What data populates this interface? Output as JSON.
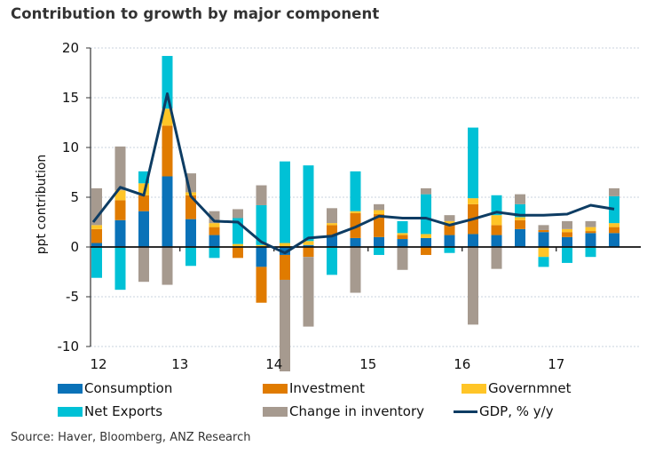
{
  "chart_data": {
    "type": "bar",
    "stacked": true,
    "title": "Contribution to growth by major component",
    "xlabel": "",
    "ylabel": "ppt contribution",
    "ylim": [
      -10,
      20
    ],
    "yticks": [
      -10,
      -5,
      0,
      5,
      10,
      15,
      20
    ],
    "xtick_labels": [
      "12",
      "13",
      "14",
      "15",
      "16",
      "17"
    ],
    "xtick_positions": [
      0,
      4,
      8,
      12,
      16,
      20
    ],
    "grid": true,
    "legend_position": "bottom",
    "categories": [
      "Q1 12",
      "Q2 12",
      "Q3 12",
      "Q4 12",
      "Q1 13",
      "Q2 13",
      "Q3 13",
      "Q4 13",
      "Q1 14",
      "Q2 14",
      "Q3 14",
      "Q4 14",
      "Q1 15",
      "Q2 15",
      "Q3 15",
      "Q4 15",
      "Q1 16",
      "Q2 16",
      "Q3 16",
      "Q4 16",
      "Q1 17",
      "Q2 17",
      "Q3 17"
    ],
    "series": [
      {
        "name": "Consumption",
        "color": "#0a72b8",
        "values": [
          0.4,
          2.7,
          3.6,
          7.1,
          2.8,
          1.2,
          0.0,
          -2.0,
          -0.8,
          0.2,
          1.2,
          0.9,
          1.0,
          0.8,
          0.9,
          1.2,
          1.3,
          1.2,
          1.8,
          1.5,
          1.0,
          1.4,
          1.4
        ]
      },
      {
        "name": "Investment",
        "color": "#e07b00",
        "values": [
          1.4,
          2.0,
          1.6,
          5.1,
          2.4,
          0.8,
          -1.1,
          -3.6,
          -2.5,
          -1.0,
          1.0,
          2.5,
          2.3,
          0.4,
          -0.8,
          1.0,
          3.0,
          1.0,
          0.9,
          0.2,
          0.5,
          0.2,
          0.6
        ]
      },
      {
        "name": "Governmnet",
        "color": "#ffc527",
        "values": [
          0.4,
          1.0,
          1.2,
          1.7,
          0.3,
          0.4,
          0.3,
          0.2,
          0.4,
          0.4,
          0.2,
          0.2,
          0.4,
          0.2,
          0.4,
          0.4,
          0.6,
          1.0,
          0.3,
          -1.0,
          0.3,
          0.4,
          0.4
        ]
      },
      {
        "name": "Net Exports",
        "color": "#00c1d6",
        "values": [
          -3.1,
          -4.3,
          1.2,
          5.3,
          -1.9,
          -1.1,
          2.6,
          4.0,
          8.2,
          7.6,
          -2.8,
          4.0,
          -0.8,
          1.2,
          4.0,
          -0.6,
          7.1,
          2.0,
          1.3,
          -1.0,
          -1.6,
          -1.0,
          2.7
        ]
      },
      {
        "name": "Change in inventory",
        "color": "#a69a8f",
        "values": [
          3.7,
          4.4,
          -3.5,
          -3.8,
          1.9,
          1.2,
          0.9,
          2.0,
          -9.2,
          -7.0,
          1.5,
          -4.6,
          0.6,
          -2.3,
          0.6,
          0.6,
          -7.8,
          -2.2,
          1.0,
          0.5,
          0.8,
          0.6,
          0.8
        ]
      },
      {
        "name": "GDP, % y/y",
        "type": "line",
        "color": "#0d3c63",
        "values": [
          2.5,
          6.0,
          5.2,
          15.4,
          5.1,
          2.6,
          2.5,
          0.5,
          -0.6,
          0.9,
          1.1,
          2.0,
          3.1,
          2.9,
          2.9,
          2.2,
          2.8,
          3.5,
          3.2,
          3.2,
          3.3,
          4.2,
          3.8
        ]
      }
    ]
  },
  "legend": {
    "items": [
      {
        "label": "Consumption",
        "color": "#0a72b8"
      },
      {
        "label": "Investment",
        "color": "#e07b00"
      },
      {
        "label": "Governmnet",
        "color": "#ffc527"
      },
      {
        "label": "Net Exports",
        "color": "#00c1d6"
      },
      {
        "label": "Change in inventory",
        "color": "#a69a8f"
      },
      {
        "label": "GDP, % y/y",
        "color": "#0d3c63"
      }
    ]
  },
  "source": "Source: Haver, Bloomberg, ANZ Research"
}
